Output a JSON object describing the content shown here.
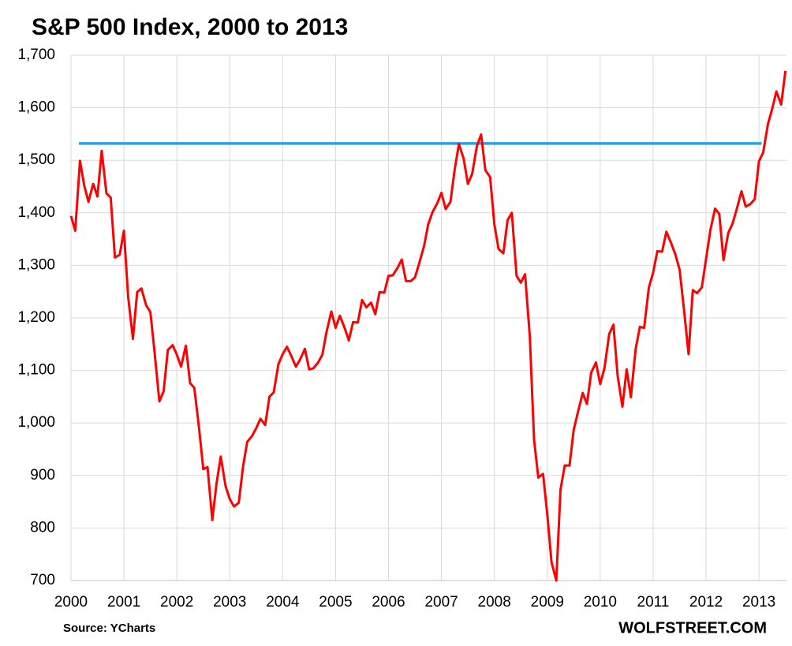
{
  "chart_data": {
    "type": "line",
    "title": "S&P 500  Index, 2000 to 2013",
    "source": "Source: YCharts",
    "watermark": "WOLFSTREET.COM",
    "x": [
      2000,
      2000.08,
      2000.17,
      2000.25,
      2000.33,
      2000.42,
      2000.5,
      2000.58,
      2000.67,
      2000.75,
      2000.83,
      2000.92,
      2001,
      2001.08,
      2001.17,
      2001.25,
      2001.33,
      2001.42,
      2001.5,
      2001.58,
      2001.67,
      2001.75,
      2001.83,
      2001.92,
      2002,
      2002.08,
      2002.17,
      2002.25,
      2002.33,
      2002.42,
      2002.5,
      2002.58,
      2002.67,
      2002.75,
      2002.83,
      2002.92,
      2003,
      2003.08,
      2003.17,
      2003.25,
      2003.33,
      2003.42,
      2003.5,
      2003.58,
      2003.67,
      2003.75,
      2003.83,
      2003.92,
      2004,
      2004.08,
      2004.17,
      2004.25,
      2004.33,
      2004.42,
      2004.5,
      2004.58,
      2004.67,
      2004.75,
      2004.83,
      2004.92,
      2005,
      2005.08,
      2005.17,
      2005.25,
      2005.33,
      2005.42,
      2005.5,
      2005.58,
      2005.67,
      2005.75,
      2005.83,
      2005.92,
      2006,
      2006.08,
      2006.17,
      2006.25,
      2006.33,
      2006.42,
      2006.5,
      2006.58,
      2006.67,
      2006.75,
      2006.83,
      2006.92,
      2007,
      2007.08,
      2007.17,
      2007.25,
      2007.33,
      2007.42,
      2007.5,
      2007.58,
      2007.67,
      2007.75,
      2007.83,
      2007.92,
      2008,
      2008.08,
      2008.17,
      2008.25,
      2008.33,
      2008.42,
      2008.5,
      2008.58,
      2008.67,
      2008.75,
      2008.83,
      2008.92,
      2009,
      2009.08,
      2009.17,
      2009.25,
      2009.33,
      2009.42,
      2009.5,
      2009.58,
      2009.67,
      2009.75,
      2009.83,
      2009.92,
      2010,
      2010.08,
      2010.17,
      2010.25,
      2010.33,
      2010.42,
      2010.5,
      2010.58,
      2010.67,
      2010.75,
      2010.83,
      2010.92,
      2011,
      2011.08,
      2011.17,
      2011.25,
      2011.33,
      2011.42,
      2011.5,
      2011.58,
      2011.67,
      2011.75,
      2011.83,
      2011.92,
      2012,
      2012.08,
      2012.17,
      2012.25,
      2012.33,
      2012.42,
      2012.5,
      2012.58,
      2012.67,
      2012.75,
      2012.83,
      2012.92,
      2013,
      2013.08,
      2013.17,
      2013.25,
      2013.33,
      2013.42,
      2013.5
    ],
    "series": [
      {
        "name": "S&P 500",
        "color": "#ff0000",
        "values": [
          1394,
          1366,
          1499,
          1452,
          1421,
          1455,
          1431,
          1518,
          1437,
          1429,
          1315,
          1320,
          1366,
          1240,
          1160,
          1249,
          1256,
          1224,
          1211,
          1134,
          1041,
          1060,
          1139,
          1148,
          1130,
          1107,
          1147,
          1076,
          1067,
          990,
          912,
          916,
          815,
          885,
          936,
          880,
          855,
          841,
          848,
          916,
          964,
          975,
          990,
          1008,
          996,
          1050,
          1058,
          1112,
          1131,
          1145,
          1126,
          1107,
          1121,
          1141,
          1102,
          1104,
          1115,
          1130,
          1174,
          1212,
          1181,
          1204,
          1181,
          1157,
          1192,
          1191,
          1234,
          1220,
          1229,
          1207,
          1249,
          1248,
          1280,
          1281,
          1295,
          1311,
          1270,
          1270,
          1277,
          1304,
          1336,
          1378,
          1401,
          1418,
          1438,
          1407,
          1421,
          1482,
          1531,
          1503,
          1455,
          1474,
          1527,
          1549,
          1481,
          1468,
          1378,
          1331,
          1323,
          1386,
          1400,
          1280,
          1267,
          1283,
          1165,
          969,
          896,
          903,
          826,
          735,
          700,
          873,
          919,
          919,
          987,
          1021,
          1057,
          1036,
          1096,
          1115,
          1074,
          1104,
          1169,
          1187,
          1089,
          1031,
          1102,
          1049,
          1141,
          1183,
          1181,
          1258,
          1286,
          1327,
          1326,
          1364,
          1345,
          1321,
          1292,
          1219,
          1131,
          1253,
          1247,
          1258,
          1312,
          1366,
          1408,
          1398,
          1310,
          1362,
          1379,
          1407,
          1441,
          1412,
          1416,
          1426,
          1498,
          1515,
          1569,
          1598,
          1631,
          1606,
          1670
        ]
      }
    ],
    "reference_line": {
      "y": 1532,
      "x": [
        2000.15,
        2013.05
      ],
      "color": "#1fa5ea"
    },
    "xlim": [
      2000,
      2013.52
    ],
    "xticks": [
      2000,
      2001,
      2002,
      2003,
      2004,
      2005,
      2006,
      2007,
      2008,
      2009,
      2010,
      2011,
      2012,
      2013
    ],
    "ylim": [
      700,
      1700
    ],
    "yticks": [
      {
        "value": 700,
        "label": "700"
      },
      {
        "value": 800,
        "label": "800"
      },
      {
        "value": 900,
        "label": "900"
      },
      {
        "value": 1000,
        "label": "1,000"
      },
      {
        "value": 1100,
        "label": "1,100"
      },
      {
        "value": 1200,
        "label": "1,200"
      },
      {
        "value": 1300,
        "label": "1,300"
      },
      {
        "value": 1400,
        "label": "1,400"
      },
      {
        "value": 1500,
        "label": "1,500"
      },
      {
        "value": 1600,
        "label": "1,600"
      },
      {
        "value": 1700,
        "label": "1,700"
      }
    ],
    "grid": true
  }
}
